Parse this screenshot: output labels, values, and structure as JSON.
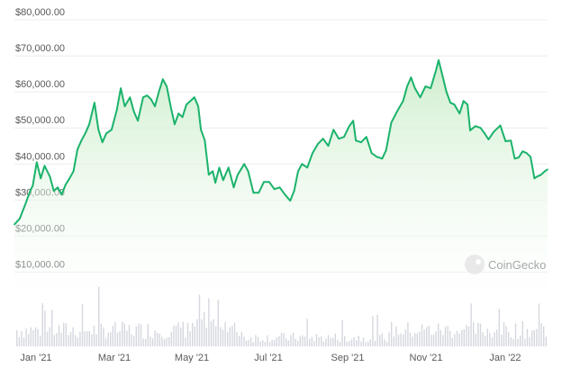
{
  "chart_data": {
    "type": "area",
    "x_labels": [
      "Jan '21",
      "Mar '21",
      "May '21",
      "Jul '21",
      "Sep '21",
      "Nov '21",
      "Jan '22"
    ],
    "y_ticks": [
      "$10,000.00",
      "$20,000.00",
      "$30,000.00",
      "$40,000.00",
      "$50,000.00",
      "$60,000.00",
      "$70,000.00",
      "$80,000.00"
    ],
    "ylim": [
      0,
      84000
    ],
    "xlim": [
      "2020-12-22",
      "2022-02-01"
    ],
    "grid": true,
    "watermark": "CoinGecko",
    "line_color": "#1bb36b",
    "fill_color_top": "#c8ecc7",
    "fill_color_bottom": "#ffffff",
    "volume_color": "#d4d7de",
    "series": [
      {
        "points": [
          [
            "2020-12-22",
            23200
          ],
          [
            "2020-12-26",
            24800
          ],
          [
            "2020-12-30",
            28500
          ],
          [
            "2021-01-03",
            32500
          ],
          [
            "2021-01-05",
            34000
          ],
          [
            "2021-01-08",
            40500
          ],
          [
            "2021-01-11",
            36000
          ],
          [
            "2021-01-14",
            39500
          ],
          [
            "2021-01-18",
            36500
          ],
          [
            "2021-01-21",
            32500
          ],
          [
            "2021-01-24",
            33500
          ],
          [
            "2021-01-27",
            31500
          ],
          [
            "2021-01-30",
            34300
          ],
          [
            "2021-02-02",
            36000
          ],
          [
            "2021-02-05",
            38000
          ],
          [
            "2021-02-08",
            44000
          ],
          [
            "2021-02-11",
            46500
          ],
          [
            "2021-02-14",
            48500
          ],
          [
            "2021-02-17",
            51000
          ],
          [
            "2021-02-21",
            57000
          ],
          [
            "2021-02-24",
            49500
          ],
          [
            "2021-02-27",
            46000
          ],
          [
            "2021-03-02",
            48500
          ],
          [
            "2021-03-06",
            49500
          ],
          [
            "2021-03-10",
            55000
          ],
          [
            "2021-03-13",
            61000
          ],
          [
            "2021-03-16",
            56000
          ],
          [
            "2021-03-20",
            58500
          ],
          [
            "2021-03-23",
            54500
          ],
          [
            "2021-03-26",
            52000
          ],
          [
            "2021-03-30",
            58500
          ],
          [
            "2021-04-02",
            59000
          ],
          [
            "2021-04-05",
            58000
          ],
          [
            "2021-04-08",
            56000
          ],
          [
            "2021-04-11",
            60000
          ],
          [
            "2021-04-14",
            63500
          ],
          [
            "2021-04-17",
            61500
          ],
          [
            "2021-04-20",
            56000
          ],
          [
            "2021-04-23",
            51000
          ],
          [
            "2021-04-26",
            54000
          ],
          [
            "2021-04-29",
            53000
          ],
          [
            "2021-05-02",
            56500
          ],
          [
            "2021-05-05",
            57500
          ],
          [
            "2021-05-08",
            58500
          ],
          [
            "2021-05-11",
            56000
          ],
          [
            "2021-05-13",
            49500
          ],
          [
            "2021-05-16",
            46500
          ],
          [
            "2021-05-19",
            37000
          ],
          [
            "2021-05-22",
            38000
          ],
          [
            "2021-05-24",
            34800
          ],
          [
            "2021-05-27",
            39000
          ],
          [
            "2021-05-30",
            35500
          ],
          [
            "2021-06-03",
            39000
          ],
          [
            "2021-06-07",
            33500
          ],
          [
            "2021-06-10",
            37000
          ],
          [
            "2021-06-15",
            40000
          ],
          [
            "2021-06-18",
            38000
          ],
          [
            "2021-06-22",
            32000
          ],
          [
            "2021-06-26",
            32000
          ],
          [
            "2021-06-30",
            35000
          ],
          [
            "2021-07-04",
            35000
          ],
          [
            "2021-07-08",
            33000
          ],
          [
            "2021-07-12",
            33500
          ],
          [
            "2021-07-16",
            31500
          ],
          [
            "2021-07-20",
            29800
          ],
          [
            "2021-07-23",
            32500
          ],
          [
            "2021-07-26",
            38000
          ],
          [
            "2021-07-29",
            40000
          ],
          [
            "2021-08-02",
            39000
          ],
          [
            "2021-08-06",
            43000
          ],
          [
            "2021-08-10",
            45500
          ],
          [
            "2021-08-14",
            47000
          ],
          [
            "2021-08-18",
            45000
          ],
          [
            "2021-08-22",
            49500
          ],
          [
            "2021-08-26",
            47000
          ],
          [
            "2021-08-30",
            47500
          ],
          [
            "2021-09-03",
            50500
          ],
          [
            "2021-09-06",
            52000
          ],
          [
            "2021-09-08",
            46500
          ],
          [
            "2021-09-12",
            46000
          ],
          [
            "2021-09-16",
            47500
          ],
          [
            "2021-09-20",
            43000
          ],
          [
            "2021-09-24",
            42000
          ],
          [
            "2021-09-28",
            41500
          ],
          [
            "2021-10-01",
            43800
          ],
          [
            "2021-10-05",
            51500
          ],
          [
            "2021-10-10",
            55000
          ],
          [
            "2021-10-14",
            57500
          ],
          [
            "2021-10-17",
            61500
          ],
          [
            "2021-10-20",
            64000
          ],
          [
            "2021-10-23",
            61000
          ],
          [
            "2021-10-27",
            58500
          ],
          [
            "2021-10-31",
            61500
          ],
          [
            "2021-11-04",
            61000
          ],
          [
            "2021-11-08",
            66000
          ],
          [
            "2021-11-10",
            68800
          ],
          [
            "2021-11-13",
            64500
          ],
          [
            "2021-11-16",
            60000
          ],
          [
            "2021-11-19",
            57000
          ],
          [
            "2021-11-22",
            56500
          ],
          [
            "2021-11-26",
            54000
          ],
          [
            "2021-11-29",
            57500
          ],
          [
            "2021-12-02",
            56500
          ],
          [
            "2021-12-04",
            49300
          ],
          [
            "2021-12-08",
            50500
          ],
          [
            "2021-12-12",
            50000
          ],
          [
            "2021-12-15",
            48500
          ],
          [
            "2021-12-18",
            46800
          ],
          [
            "2021-12-22",
            48900
          ],
          [
            "2021-12-27",
            50700
          ],
          [
            "2021-12-31",
            46300
          ],
          [
            "2022-01-04",
            46500
          ],
          [
            "2022-01-07",
            41500
          ],
          [
            "2022-01-10",
            41800
          ],
          [
            "2022-01-13",
            43500
          ],
          [
            "2022-01-16",
            43000
          ],
          [
            "2022-01-19",
            42000
          ],
          [
            "2022-01-22",
            36000
          ],
          [
            "2022-01-24",
            36500
          ],
          [
            "2022-01-27",
            37000
          ],
          [
            "2022-01-30",
            38000
          ],
          [
            "2022-02-01",
            38500
          ]
        ]
      }
    ]
  }
}
